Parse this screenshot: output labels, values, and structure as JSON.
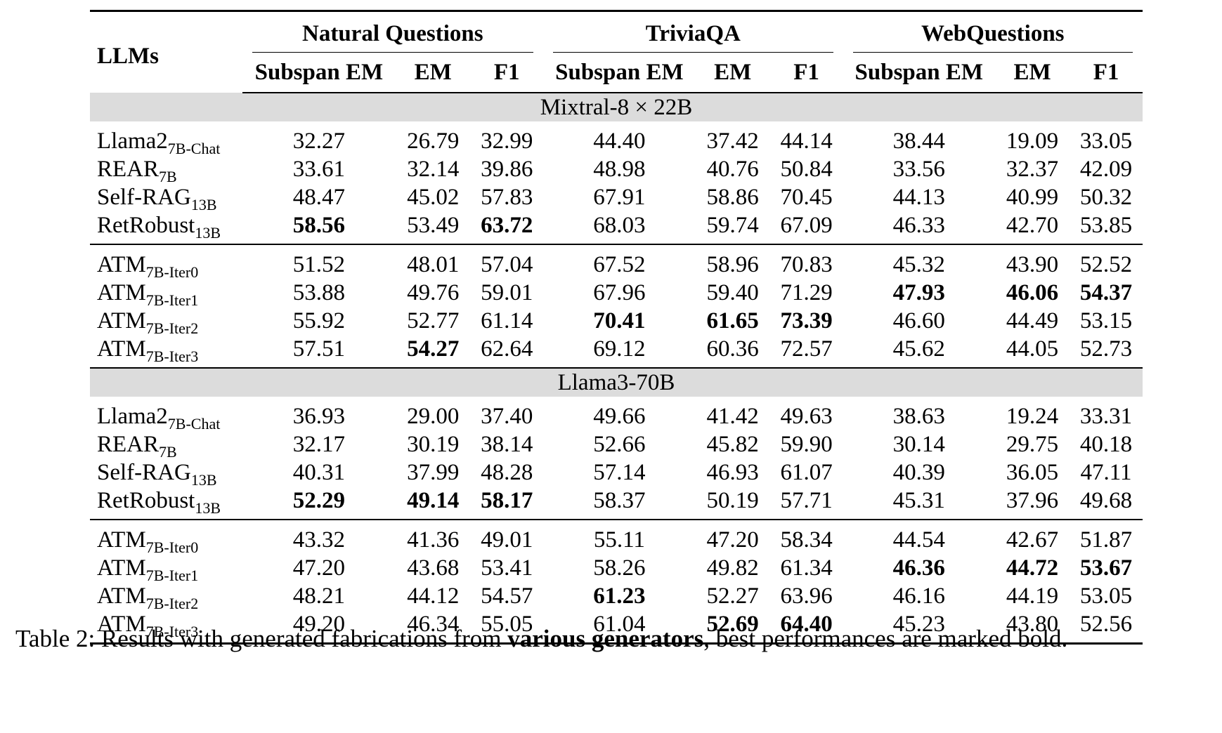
{
  "table": {
    "llm_header": "LLMs",
    "groups": [
      "Natural Questions",
      "TriviaQA",
      "WebQuestions"
    ],
    "metrics": [
      "Subspan EM",
      "EM",
      "F1"
    ],
    "sections": [
      {
        "title": "Mixtral-8 × 22B",
        "blocks": [
          {
            "rows": [
              {
                "name": "Llama2",
                "sub": "7B-Chat",
                "values": [
                  "32.27",
                  "26.79",
                  "32.99",
                  "44.40",
                  "37.42",
                  "44.14",
                  "38.44",
                  "19.09",
                  "33.05"
                ],
                "bold": []
              },
              {
                "name": "REAR",
                "sub": "7B",
                "values": [
                  "33.61",
                  "32.14",
                  "39.86",
                  "48.98",
                  "40.76",
                  "50.84",
                  "33.56",
                  "32.37",
                  "42.09"
                ],
                "bold": []
              },
              {
                "name": "Self-RAG",
                "sub": "13B",
                "values": [
                  "48.47",
                  "45.02",
                  "57.83",
                  "67.91",
                  "58.86",
                  "70.45",
                  "44.13",
                  "40.99",
                  "50.32"
                ],
                "bold": []
              },
              {
                "name": "RetRobust",
                "sub": "13B",
                "values": [
                  "58.56",
                  "53.49",
                  "63.72",
                  "68.03",
                  "59.74",
                  "67.09",
                  "46.33",
                  "42.70",
                  "53.85"
                ],
                "bold": [
                  0,
                  2
                ]
              }
            ]
          },
          {
            "rows": [
              {
                "name": "ATM",
                "sub": "7B-Iter0",
                "values": [
                  "51.52",
                  "48.01",
                  "57.04",
                  "67.52",
                  "58.96",
                  "70.83",
                  "45.32",
                  "43.90",
                  "52.52"
                ],
                "bold": []
              },
              {
                "name": "ATM",
                "sub": "7B-Iter1",
                "values": [
                  "53.88",
                  "49.76",
                  "59.01",
                  "67.96",
                  "59.40",
                  "71.29",
                  "47.93",
                  "46.06",
                  "54.37"
                ],
                "bold": [
                  6,
                  7,
                  8
                ]
              },
              {
                "name": "ATM",
                "sub": "7B-Iter2",
                "values": [
                  "55.92",
                  "52.77",
                  "61.14",
                  "70.41",
                  "61.65",
                  "73.39",
                  "46.60",
                  "44.49",
                  "53.15"
                ],
                "bold": [
                  3,
                  4,
                  5
                ]
              },
              {
                "name": "ATM",
                "sub": "7B-Iter3",
                "values": [
                  "57.51",
                  "54.27",
                  "62.64",
                  "69.12",
                  "60.36",
                  "72.57",
                  "45.62",
                  "44.05",
                  "52.73"
                ],
                "bold": [
                  1
                ]
              }
            ]
          }
        ]
      },
      {
        "title": "Llama3-70B",
        "blocks": [
          {
            "rows": [
              {
                "name": "Llama2",
                "sub": "7B-Chat",
                "values": [
                  "36.93",
                  "29.00",
                  "37.40",
                  "49.66",
                  "41.42",
                  "49.63",
                  "38.63",
                  "19.24",
                  "33.31"
                ],
                "bold": []
              },
              {
                "name": "REAR",
                "sub": "7B",
                "values": [
                  "32.17",
                  "30.19",
                  "38.14",
                  "52.66",
                  "45.82",
                  "59.90",
                  "30.14",
                  "29.75",
                  "40.18"
                ],
                "bold": []
              },
              {
                "name": "Self-RAG",
                "sub": "13B",
                "values": [
                  "40.31",
                  "37.99",
                  "48.28",
                  "57.14",
                  "46.93",
                  "61.07",
                  "40.39",
                  "36.05",
                  "47.11"
                ],
                "bold": []
              },
              {
                "name": "RetRobust",
                "sub": "13B",
                "values": [
                  "52.29",
                  "49.14",
                  "58.17",
                  "58.37",
                  "50.19",
                  "57.71",
                  "45.31",
                  "37.96",
                  "49.68"
                ],
                "bold": [
                  0,
                  1,
                  2
                ]
              }
            ]
          },
          {
            "rows": [
              {
                "name": "ATM",
                "sub": "7B-Iter0",
                "values": [
                  "43.32",
                  "41.36",
                  "49.01",
                  "55.11",
                  "47.20",
                  "58.34",
                  "44.54",
                  "42.67",
                  "51.87"
                ],
                "bold": []
              },
              {
                "name": "ATM",
                "sub": "7B-Iter1",
                "values": [
                  "47.20",
                  "43.68",
                  "53.41",
                  "58.26",
                  "49.82",
                  "61.34",
                  "46.36",
                  "44.72",
                  "53.67"
                ],
                "bold": [
                  6,
                  7,
                  8
                ]
              },
              {
                "name": "ATM",
                "sub": "7B-Iter2",
                "values": [
                  "48.21",
                  "44.12",
                  "54.57",
                  "61.23",
                  "52.27",
                  "63.96",
                  "46.16",
                  "44.19",
                  "53.05"
                ],
                "bold": [
                  3
                ]
              },
              {
                "name": "ATM",
                "sub": "7B-Iter3",
                "values": [
                  "49.20",
                  "46.34",
                  "55.05",
                  "61.04",
                  "52.69",
                  "64.40",
                  "45.23",
                  "43.80",
                  "52.56"
                ],
                "bold": [
                  4,
                  5
                ]
              }
            ]
          }
        ]
      }
    ]
  },
  "caption": {
    "prefix": "Table 2: Results with generated fabrications from ",
    "bold": "various generators",
    "suffix": ", best performances are marked bold."
  }
}
